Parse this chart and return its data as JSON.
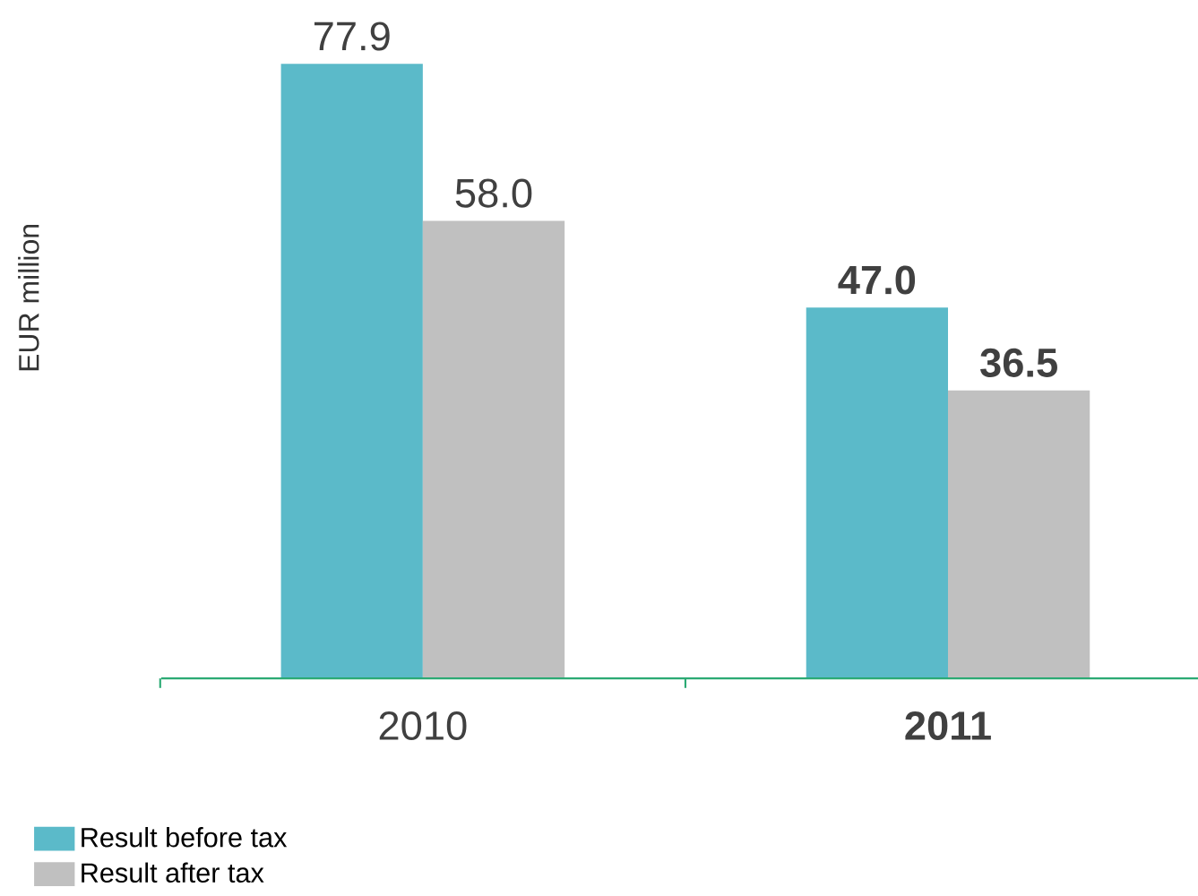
{
  "chart_data": {
    "type": "bar",
    "annotations": [
      "EUR million"
    ],
    "categories": [
      "2010",
      "**2011**"
    ],
    "series": [
      {
        "name": "Result before tax",
        "color": "#5bbac9",
        "values": [
          77.9,
          47.0
        ],
        "value_labels": [
          "77.9",
          "**47.0**"
        ]
      },
      {
        "name": "Result after tax",
        "color": "#c0c0c0",
        "values": [
          58.0,
          36.5
        ],
        "value_labels": [
          "58.0",
          "**36.5**"
        ]
      }
    ],
    "legend": "bottom left"
  }
}
